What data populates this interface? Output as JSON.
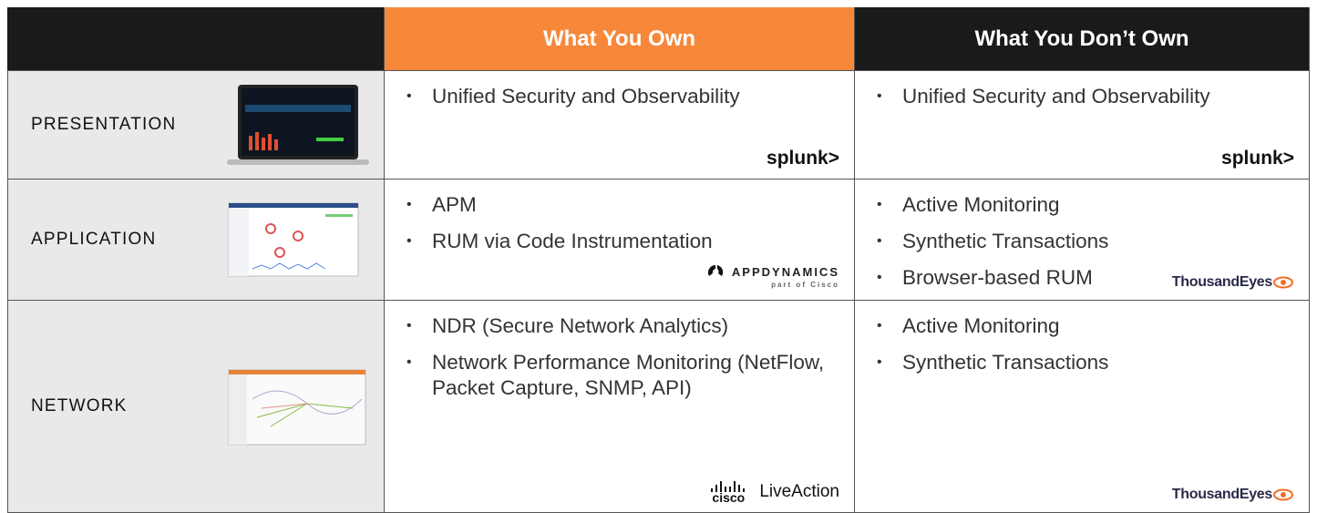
{
  "header": {
    "own": "What You Own",
    "dont_own": "What You Don’t Own"
  },
  "rows": [
    {
      "label": "PRESENTATION",
      "own": {
        "items": [
          "Unified Security and Observability"
        ],
        "logos": [
          "splunk>"
        ]
      },
      "dont_own": {
        "items": [
          "Unified Security and Observability"
        ],
        "logos": [
          "splunk>"
        ]
      }
    },
    {
      "label": "APPLICATION",
      "own": {
        "items": [
          "APM",
          "RUM via Code Instrumentation"
        ],
        "logos": [
          "APPDYNAMICS",
          "part of Cisco"
        ]
      },
      "dont_own": {
        "items": [
          "Active Monitoring",
          "Synthetic Transactions",
          "Browser-based RUM"
        ],
        "logos": [
          "ThousandEyes"
        ]
      }
    },
    {
      "label": "NETWORK",
      "own": {
        "items": [
          "NDR (Secure Network Analytics)",
          "Network Performance Monitoring (NetFlow, Packet Capture, SNMP, API)"
        ],
        "logos": [
          "cisco",
          "LiveAction"
        ]
      },
      "dont_own": {
        "items": [
          "Active Monitoring",
          "Synthetic Transactions"
        ],
        "logos": [
          "ThousandEyes"
        ]
      }
    }
  ]
}
